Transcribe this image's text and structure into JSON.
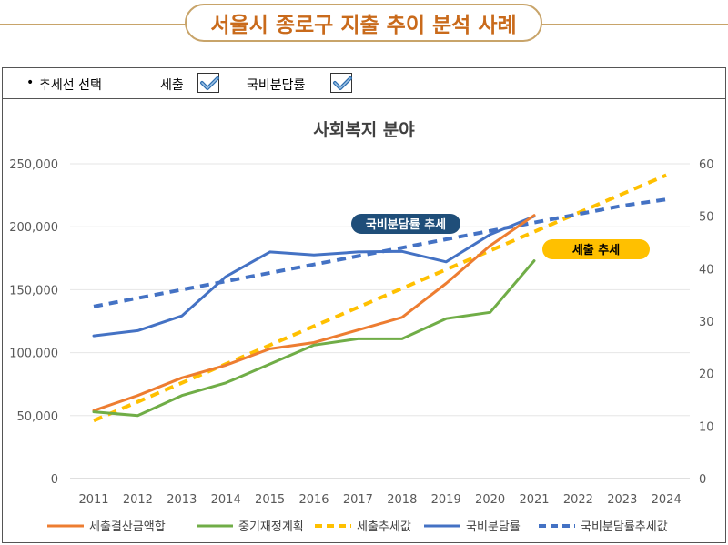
{
  "banner": {
    "title": "서울시 종로구 지출 추이 분석 사례"
  },
  "options": {
    "bullet": "•",
    "label": "추세선 선택",
    "cb1_label": "세출",
    "cb1_checked": true,
    "cb2_label": "국비분담률",
    "cb2_checked": true
  },
  "colors": {
    "orange": "#ed7d31",
    "green": "#70ad47",
    "yellow": "#ffc000",
    "blue": "#4472c4",
    "navy": "#1f4e79",
    "accent": "#c8a46a"
  },
  "chart_data": {
    "type": "line",
    "title": "사회복지 분야",
    "categories": [
      "2011",
      "2012",
      "2013",
      "2014",
      "2015",
      "2016",
      "2017",
      "2018",
      "2019",
      "2020",
      "2021",
      "2022",
      "2023",
      "2024"
    ],
    "y_left": {
      "ticks": [
        "0",
        "50,000",
        "100,000",
        "150,000",
        "200,000",
        "250,000"
      ],
      "ylim": [
        0,
        250000
      ]
    },
    "y_right": {
      "ticks": [
        "0",
        "10",
        "20",
        "30",
        "40",
        "50",
        "60"
      ],
      "ylim": [
        0,
        60
      ]
    },
    "series": [
      {
        "name": "세출결산금액합",
        "axis": "left",
        "style": "solid",
        "color": "#ed7d31",
        "values": [
          54000,
          66000,
          80000,
          90000,
          103000,
          108000,
          118000,
          128000,
          155000,
          185000,
          209000,
          null,
          null,
          null
        ]
      },
      {
        "name": "중기재정계획",
        "axis": "left",
        "style": "solid",
        "color": "#70ad47",
        "values": [
          53000,
          50000,
          66000,
          76000,
          91000,
          106000,
          111000,
          111000,
          127000,
          132000,
          173000,
          null,
          null,
          null
        ]
      },
      {
        "name": "세출추세값",
        "axis": "left",
        "style": "dashed",
        "color": "#ffc000",
        "values": [
          46000,
          61000,
          76000,
          91000,
          106000,
          121000,
          136000,
          151000,
          166000,
          181000,
          196000,
          211000,
          226000,
          241000
        ]
      },
      {
        "name": "국비분담률",
        "axis": "right",
        "style": "solid",
        "color": "#4472c4",
        "values": [
          27.2,
          28.2,
          31.0,
          38.5,
          43.2,
          42.6,
          43.2,
          43.3,
          41.3,
          46.5,
          50.0,
          null,
          null,
          null
        ]
      },
      {
        "name": "국비분담률추세값",
        "axis": "right",
        "style": "dashed",
        "color": "#4472c4",
        "values": [
          32.8,
          34.4,
          36.0,
          37.6,
          39.2,
          40.8,
          42.4,
          44.0,
          45.6,
          47.2,
          48.8,
          50.4,
          52.0,
          53.2
        ]
      }
    ],
    "annotations": [
      {
        "text": "국비분담률 추세",
        "bg": "#1f4e79",
        "fg": "#ffffff"
      },
      {
        "text": "세출 추세",
        "bg": "#ffc000",
        "fg": "#000000"
      }
    ],
    "legend": "bottom",
    "grid": true
  }
}
